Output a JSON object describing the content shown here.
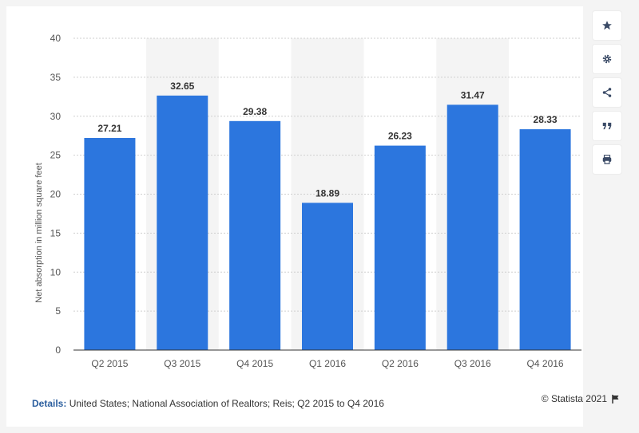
{
  "chart_data": {
    "type": "bar",
    "categories": [
      "Q2 2015",
      "Q3 2015",
      "Q4 2015",
      "Q1 2016",
      "Q2 2016",
      "Q3 2016",
      "Q4 2016"
    ],
    "values": [
      27.21,
      32.65,
      29.38,
      18.89,
      26.23,
      31.47,
      28.33
    ],
    "value_labels": [
      "27.21",
      "32.65",
      "29.38",
      "18.89",
      "26.23",
      "31.47",
      "28.33"
    ],
    "ylabel": "Net absorption in million square feet",
    "ylim": [
      0,
      40
    ],
    "yticks": [
      0,
      5,
      10,
      15,
      20,
      25,
      30,
      35,
      40
    ],
    "grid": true,
    "bar_color": "#2c76de",
    "alt_band_color": "#f4f4f4"
  },
  "footer": {
    "details_label": "Details:",
    "details_text": " United States; National Association of Realtors; Reis; Q2 2015 to Q4 2016",
    "credit": "© Statista 2021"
  },
  "sidebar": {
    "buttons": [
      "star-icon",
      "gear-icon",
      "share-icon",
      "quote-icon",
      "print-icon"
    ]
  }
}
